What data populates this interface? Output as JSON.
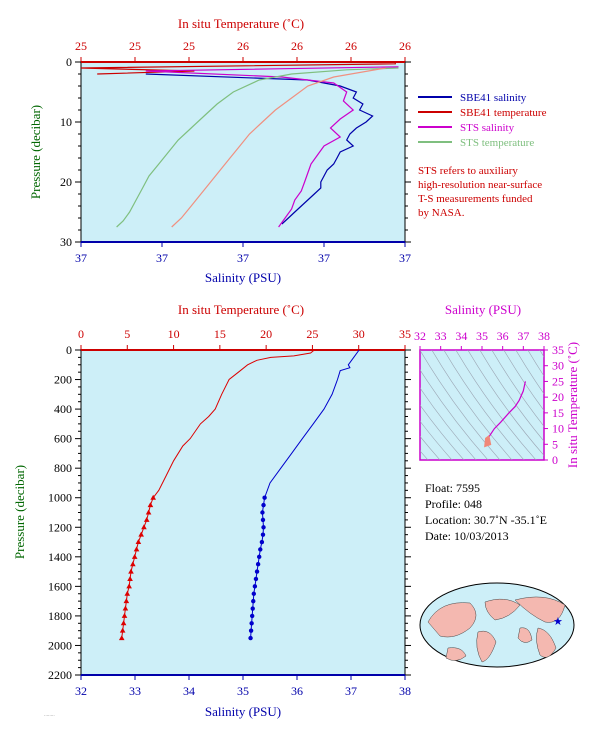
{
  "chart_data": [
    {
      "type": "line",
      "panel": "near-surface",
      "top_axis_title": "In situ Temperature (˚C)",
      "top_tick_labels": [
        "25",
        "25",
        "25",
        "26",
        "26",
        "26",
        "26"
      ],
      "bottom_axis_title": "Salinity (PSU)",
      "bottom_tick_labels": [
        "37",
        "37",
        "37",
        "37",
        "37"
      ],
      "ylabel": "Pressure (decibar)",
      "y_tick_labels": [
        "0",
        "10",
        "20",
        "30"
      ],
      "ylim": [
        30,
        0
      ],
      "series": [
        {
          "name": "SBE41 salinity",
          "color": "#0000aa",
          "points": [
            [
              0.2,
              2
            ],
            [
              0.7,
              3
            ],
            [
              0.8,
              4
            ],
            [
              0.85,
              5
            ],
            [
              0.84,
              6
            ],
            [
              0.87,
              7
            ],
            [
              0.86,
              8
            ],
            [
              0.9,
              9
            ],
            [
              0.88,
              10
            ],
            [
              0.85,
              11
            ],
            [
              0.83,
              12
            ],
            [
              0.82,
              13
            ],
            [
              0.84,
              14
            ],
            [
              0.8,
              15
            ],
            [
              0.79,
              16
            ],
            [
              0.78,
              17
            ],
            [
              0.76,
              18
            ],
            [
              0.75,
              19
            ],
            [
              0.74,
              20
            ],
            [
              0.74,
              21
            ],
            [
              0.72,
              22
            ],
            [
              0.7,
              23
            ],
            [
              0.68,
              24
            ],
            [
              0.66,
              25
            ],
            [
              0.64,
              26
            ],
            [
              0.62,
              27
            ]
          ]
        },
        {
          "name": "SBE41 temperature",
          "color": "#cc0000",
          "points": [
            [
              0.97,
              0
            ],
            [
              0.97,
              0.3
            ],
            [
              0.0,
              1
            ],
            [
              0.35,
              1.5
            ],
            [
              0.05,
              2
            ]
          ]
        },
        {
          "name": "STS salinity",
          "color": "#cc00cc",
          "points": [
            [
              0.98,
              0.8
            ],
            [
              0.2,
              1.5
            ],
            [
              0.62,
              2.5
            ],
            [
              0.78,
              3.5
            ],
            [
              0.82,
              5
            ],
            [
              0.81,
              6.5
            ],
            [
              0.84,
              8
            ],
            [
              0.8,
              9.5
            ],
            [
              0.77,
              11
            ],
            [
              0.8,
              12.5
            ],
            [
              0.75,
              14
            ],
            [
              0.73,
              15.5
            ],
            [
              0.71,
              17
            ],
            [
              0.7,
              18.5
            ],
            [
              0.69,
              20
            ],
            [
              0.68,
              21.5
            ],
            [
              0.66,
              23
            ],
            [
              0.65,
              24.5
            ],
            [
              0.63,
              26
            ],
            [
              0.61,
              27.5
            ]
          ]
        },
        {
          "name": "STS temperature",
          "color": "#7fbf7f",
          "points": [
            [
              0.98,
              1
            ],
            [
              0.82,
              1.3
            ],
            [
              0.65,
              2
            ],
            [
              0.55,
              3
            ],
            [
              0.47,
              5
            ],
            [
              0.42,
              7
            ],
            [
              0.38,
              9
            ],
            [
              0.34,
              11
            ],
            [
              0.3,
              13
            ],
            [
              0.27,
              15
            ],
            [
              0.24,
              17
            ],
            [
              0.21,
              19
            ],
            [
              0.19,
              21
            ],
            [
              0.17,
              23
            ],
            [
              0.15,
              25
            ],
            [
              0.13,
              26.5
            ],
            [
              0.11,
              27.5
            ]
          ]
        },
        {
          "name": "",
          "color": "#f09080",
          "points": [
            [
              0.94,
              1
            ],
            [
              0.78,
              2.5
            ],
            [
              0.7,
              4
            ],
            [
              0.65,
              6
            ],
            [
              0.6,
              8
            ],
            [
              0.56,
              10
            ],
            [
              0.52,
              12
            ],
            [
              0.49,
              14
            ],
            [
              0.46,
              16
            ],
            [
              0.43,
              18
            ],
            [
              0.4,
              20
            ],
            [
              0.37,
              22
            ],
            [
              0.34,
              24
            ],
            [
              0.31,
              26
            ],
            [
              0.28,
              27.5
            ]
          ]
        }
      ],
      "legend_position": "right"
    },
    {
      "type": "line",
      "panel": "full-profile",
      "top_axis_title": "In situ Temperature (˚C)",
      "top_tick_labels": [
        "0",
        "5",
        "10",
        "15",
        "20",
        "25",
        "30",
        "35"
      ],
      "xlim_top": [
        0,
        35
      ],
      "bottom_axis_title": "Salinity (PSU)",
      "bottom_tick_labels": [
        "32",
        "33",
        "34",
        "35",
        "36",
        "37",
        "38"
      ],
      "xlim_bottom": [
        32,
        38
      ],
      "ylabel": "Pressure (decibar)",
      "y_tick_labels": [
        "0",
        "200",
        "400",
        "600",
        "800",
        "1000",
        "1200",
        "1400",
        "1600",
        "1800",
        "2000",
        "2200"
      ],
      "ylim": [
        2200,
        0
      ],
      "temperature": [
        [
          25.2,
          0
        ],
        [
          24.8,
          20
        ],
        [
          23.0,
          40
        ],
        [
          20.5,
          50
        ],
        [
          19.0,
          70
        ],
        [
          18.0,
          100
        ],
        [
          17.0,
          150
        ],
        [
          16.0,
          200
        ],
        [
          15.2,
          300
        ],
        [
          14.5,
          400
        ],
        [
          13.8,
          450
        ],
        [
          12.9,
          500
        ],
        [
          11.8,
          600
        ],
        [
          11.0,
          650
        ],
        [
          10.0,
          750
        ],
        [
          9.2,
          850
        ],
        [
          8.4,
          950
        ],
        [
          7.8,
          1000
        ],
        [
          7.5,
          1050
        ],
        [
          7.3,
          1100
        ],
        [
          7.1,
          1150
        ],
        [
          6.8,
          1200
        ],
        [
          6.5,
          1250
        ],
        [
          6.2,
          1300
        ],
        [
          6.0,
          1350
        ],
        [
          5.8,
          1400
        ],
        [
          5.6,
          1450
        ],
        [
          5.4,
          1500
        ],
        [
          5.3,
          1550
        ],
        [
          5.2,
          1600
        ],
        [
          5.0,
          1650
        ],
        [
          4.9,
          1700
        ],
        [
          4.8,
          1750
        ],
        [
          4.7,
          1800
        ],
        [
          4.6,
          1850
        ],
        [
          4.5,
          1900
        ],
        [
          4.4,
          1950
        ]
      ],
      "salinity": [
        [
          37.15,
          0
        ],
        [
          37.05,
          50
        ],
        [
          36.95,
          100
        ],
        [
          36.98,
          120
        ],
        [
          36.8,
          140
        ],
        [
          36.75,
          200
        ],
        [
          36.65,
          300
        ],
        [
          36.5,
          400
        ],
        [
          36.3,
          500
        ],
        [
          36.1,
          600
        ],
        [
          35.9,
          700
        ],
        [
          35.7,
          800
        ],
        [
          35.5,
          900
        ],
        [
          35.4,
          1000
        ],
        [
          35.38,
          1050
        ],
        [
          35.36,
          1100
        ],
        [
          35.37,
          1150
        ],
        [
          35.38,
          1200
        ],
        [
          35.37,
          1250
        ],
        [
          35.35,
          1300
        ],
        [
          35.32,
          1350
        ],
        [
          35.3,
          1400
        ],
        [
          35.28,
          1450
        ],
        [
          35.26,
          1500
        ],
        [
          35.24,
          1550
        ],
        [
          35.22,
          1600
        ],
        [
          35.2,
          1650
        ],
        [
          35.19,
          1700
        ],
        [
          35.18,
          1750
        ],
        [
          35.17,
          1800
        ],
        [
          35.16,
          1850
        ],
        [
          35.15,
          1900
        ],
        [
          35.14,
          1950
        ]
      ]
    },
    {
      "type": "line",
      "panel": "t-s-diagram",
      "top_axis_title": "Salinity (PSU)",
      "top_tick_labels": [
        "32",
        "33",
        "34",
        "35",
        "36",
        "37",
        "38"
      ],
      "xlim": [
        32,
        38
      ],
      "right_axis_title": "In situ Temperature (˚C)",
      "right_tick_labels": [
        "35",
        "30",
        "25",
        "20",
        "15",
        "10",
        "5",
        "0"
      ],
      "ylim": [
        0,
        35
      ],
      "points": [
        [
          35.15,
          4.5
        ],
        [
          35.25,
          5.5
        ],
        [
          35.35,
          7.5
        ],
        [
          35.6,
          10
        ],
        [
          35.9,
          12
        ],
        [
          36.3,
          15
        ],
        [
          36.6,
          17
        ],
        [
          36.8,
          19
        ],
        [
          37.0,
          22
        ],
        [
          37.1,
          25
        ]
      ]
    }
  ],
  "legend": {
    "items": [
      {
        "label": "SBE41 salinity",
        "color": "#0000aa"
      },
      {
        "label": "SBE41 temperature",
        "color": "#cc0000"
      },
      {
        "label": "STS salinity",
        "color": "#cc00cc"
      },
      {
        "label": "STS temperature",
        "color": "#7fbf7f"
      }
    ],
    "note_lines": [
      "STS refers to auxiliary",
      "high-resolution near-surface",
      "T-S measurements funded",
      "by NASA."
    ]
  },
  "info": {
    "float": "Float:  7595",
    "profile": "Profile:  048",
    "location": "Location:  30.7˚N  -35.1˚E",
    "date": "Date:  10/03/2013"
  }
}
